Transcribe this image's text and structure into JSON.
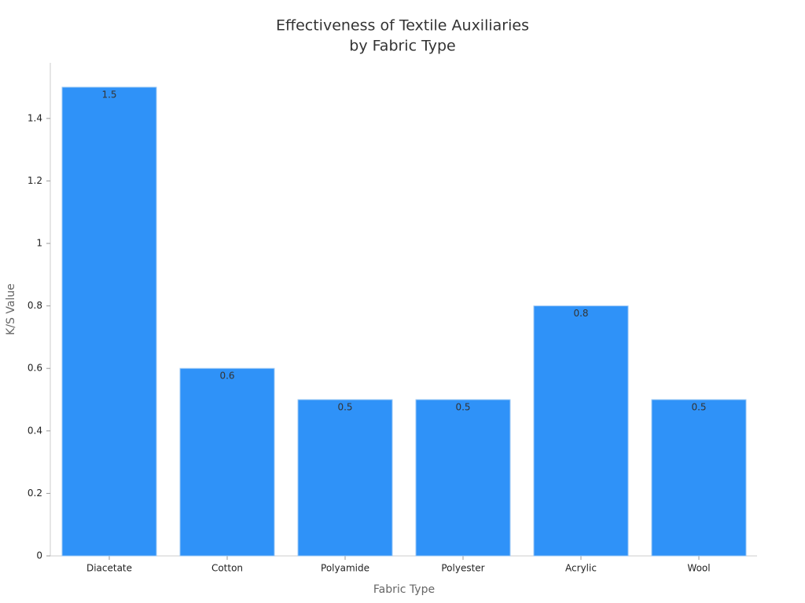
{
  "chart_data": {
    "type": "bar",
    "title": [
      "Effectiveness of Textile Auxiliaries",
      "by Fabric Type"
    ],
    "x_label": "Fabric Type",
    "y_label": "K/S Value",
    "categories": [
      "Diacetate",
      "Cotton",
      "Polyamide",
      "Polyester",
      "Acrylic",
      "Wool"
    ],
    "values": [
      1.5,
      0.6,
      0.5,
      0.5,
      0.8,
      0.5
    ],
    "color": "#2f92f8",
    "ylim": [
      0,
      1.578
    ],
    "yticks": [
      0,
      0.2,
      0.4,
      0.6,
      0.8,
      1,
      1.2,
      1.4
    ],
    "grid": false
  }
}
